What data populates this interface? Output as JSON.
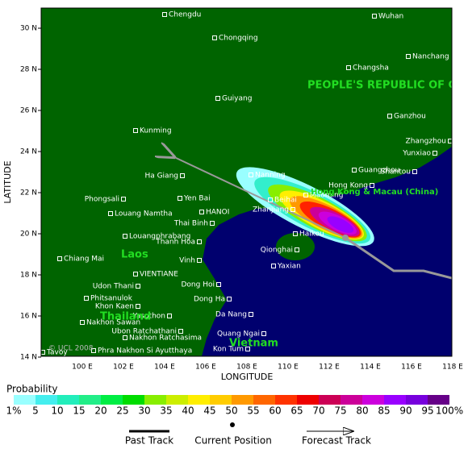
{
  "axes": {
    "y_title": "LATITUDE",
    "x_title": "LONGITUDE",
    "lat_ticks": [
      "30 N",
      "28 N",
      "26 N",
      "24 N",
      "22 N",
      "20 N",
      "18 N",
      "16 N",
      "14 N"
    ],
    "lon_ticks": [
      "100 E",
      "102 E",
      "104 E",
      "106 E",
      "108 E",
      "110 E",
      "112 E",
      "114 E",
      "116 E",
      "118 E"
    ]
  },
  "cities": [
    "Chengdu",
    "Wuhan",
    "Chongqing",
    "Nanchang",
    "Changsha",
    "Guiyang",
    "Ganzhou",
    "Kunming",
    "Zhangzhou",
    "Yunxiao",
    "Guangzhou",
    "Shantou",
    "Nanning",
    "Ha Giang",
    "Hong Kong",
    "Yen Bai",
    "Beihai",
    "Maoming",
    "Phongsali",
    "Zhanjiang",
    "HANOI",
    "Louang Namtha",
    "Thai Binh",
    "Louangphrabang",
    "Haikou",
    "Thanh Hoa",
    "Qionghai",
    "Vinh",
    "Chiang Mai",
    "Yaxian",
    "VIENTIANE",
    "Dong Hoi",
    "Udon Thani",
    "Phitsanulok",
    "Dong Ha",
    "Khon Kaen",
    "Yasothon",
    "Da Nang",
    "Nakhon Sawan",
    "Ubon Ratchathani",
    "Quang Ngai",
    "Nakhon Ratchasima",
    "Phra Nakhon Si Ayutthaya",
    "Kon Tum",
    "Tavoy"
  ],
  "regions": [
    "PEOPLE'S REPUBLIC OF CH",
    "Hong Kong & Macau (China)",
    "Laos",
    "Thailand",
    "Vietnam"
  ],
  "copyright": "© UCL 2008",
  "legend": {
    "title": "Probability",
    "labels": [
      "1%",
      "5",
      "10",
      "15",
      "20",
      "25",
      "30",
      "35",
      "40",
      "45",
      "50",
      "55",
      "60",
      "65",
      "70",
      "75",
      "80",
      "85",
      "90",
      "95",
      "100%"
    ],
    "colors": [
      "#99ffff",
      "#44eeee",
      "#22eebb",
      "#22ee88",
      "#00ee44",
      "#00dd00",
      "#88ee00",
      "#ccee00",
      "#ffee00",
      "#ffcc00",
      "#ff9900",
      "#ff6600",
      "#ff3300",
      "#ee0000",
      "#cc0055",
      "#cc0099",
      "#cc00dd",
      "#9900ff",
      "#7700dd",
      "#660088"
    ],
    "items": [
      "Past Track",
      "Current Position",
      "Forecast Track"
    ]
  }
}
